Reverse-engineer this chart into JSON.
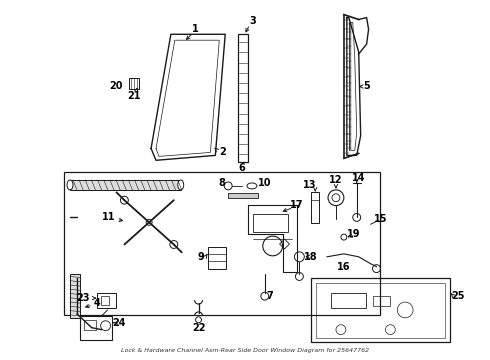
{
  "background_color": "#ffffff",
  "line_color": "#1a1a1a",
  "text_color": "#000000",
  "fig_width": 4.9,
  "fig_height": 3.6,
  "dpi": 100,
  "subtitle": "Lock & Hardware Channel Asm-Rear Side Door Window Diagram for 25647762"
}
